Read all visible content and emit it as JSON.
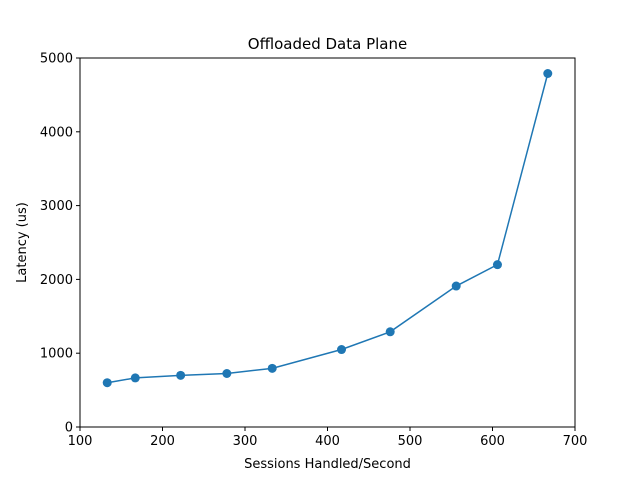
{
  "chart_data": {
    "type": "line",
    "title": "Offloaded Data Plane",
    "xlabel": "Sessions Handled/Second",
    "ylabel": "Latency (us)",
    "xlim": [
      100,
      700
    ],
    "ylim": [
      0,
      5000
    ],
    "x_ticks": [
      100,
      200,
      300,
      400,
      500,
      600,
      700
    ],
    "y_ticks": [
      0,
      1000,
      2000,
      3000,
      4000,
      5000
    ],
    "grid": false,
    "series": [
      {
        "color": "#1f77b4",
        "marker": "circle",
        "x": [
          133,
          167,
          222,
          278,
          333,
          417,
          476,
          556,
          606,
          667
        ],
        "y": [
          600,
          665,
          700,
          725,
          795,
          1050,
          1290,
          1910,
          2200,
          4790
        ]
      }
    ]
  }
}
